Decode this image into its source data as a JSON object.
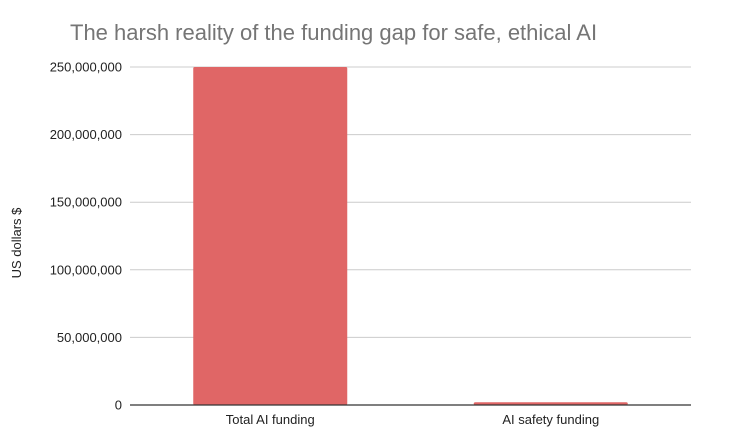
{
  "chart_data": {
    "type": "bar",
    "title": "The harsh reality of the funding gap for safe, ethical AI",
    "xlabel": "",
    "ylabel": "US dollars $",
    "categories": [
      "Total AI funding",
      "AI safety funding"
    ],
    "values": [
      250000000,
      2000000
    ],
    "ylim": [
      0,
      250000000
    ],
    "yticks": [
      0,
      50000000,
      100000000,
      150000000,
      200000000,
      250000000
    ],
    "ytick_labels": [
      "0",
      "50,000,000",
      "100,000,000",
      "150,000,000",
      "200,000,000",
      "250,000,000"
    ],
    "bar_color": "#e06666",
    "grid": true,
    "legend": "none"
  }
}
